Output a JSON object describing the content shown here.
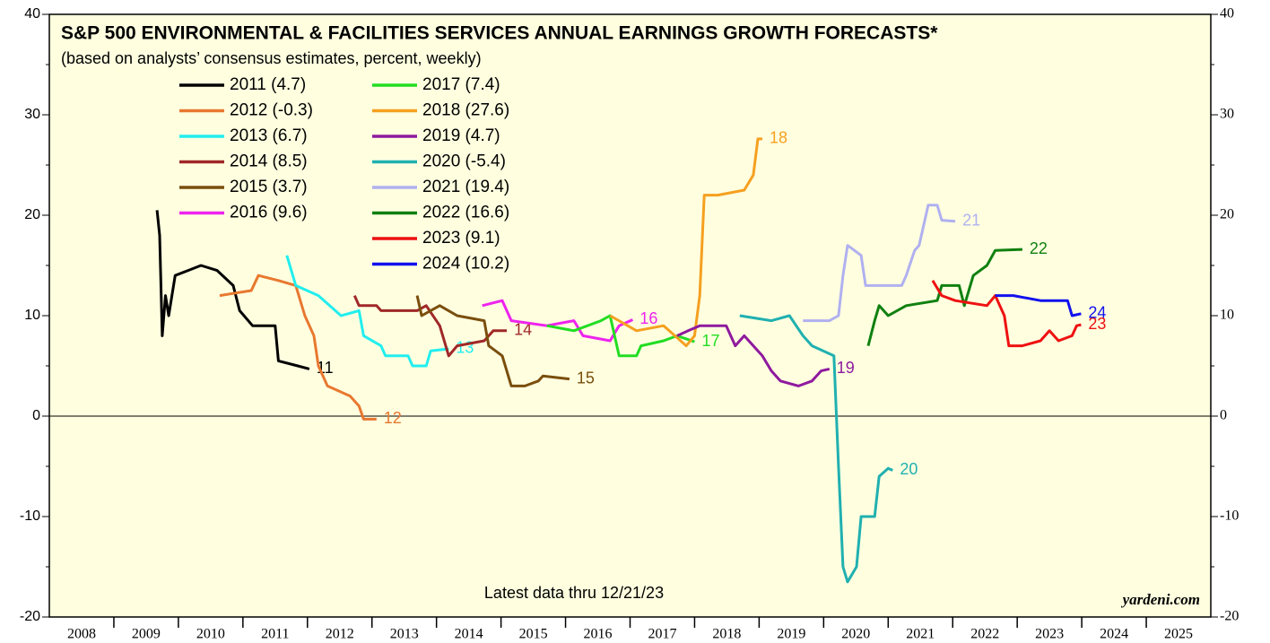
{
  "chart_data": {
    "type": "line",
    "title": "S&P 500 ENVIRONMENTAL & FACILITIES SERVICES ANNUAL EARNINGS GROWTH FORECASTS*",
    "subtitle": "(based on analysts’ consensus estimates, percent, weekly)",
    "note": "Latest data thru 12/21/23",
    "source": "yardeni.com",
    "xlim": [
      2008,
      2026
    ],
    "xticks": [
      2009,
      2010,
      2011,
      2012,
      2013,
      2014,
      2015,
      2016,
      2017,
      2018,
      2019,
      2020,
      2021,
      2022,
      2023,
      2024,
      2025
    ],
    "categories": [
      "2008",
      "2009",
      "2010",
      "2011",
      "2012",
      "2013",
      "2014",
      "2015",
      "2016",
      "2017",
      "2018",
      "2019",
      "2020",
      "2021",
      "2022",
      "2023",
      "2024",
      "2025"
    ],
    "ylim": [
      -20,
      40
    ],
    "yticks": [
      -20,
      -10,
      0,
      10,
      20,
      30,
      40
    ],
    "series": [
      {
        "name": "2011 (4.7)",
        "label": "11",
        "color": "#000000",
        "x": [
          2009.67,
          2009.71,
          2009.75,
          2009.8,
          2009.85,
          2009.95,
          2010.15,
          2010.35,
          2010.6,
          2010.85,
          2010.95,
          2011.15,
          2011.5,
          2011.55,
          2011.85,
          2012.03
        ],
        "values": [
          20.5,
          18,
          8,
          12,
          10,
          14,
          14.5,
          15,
          14.5,
          13,
          10.5,
          9,
          9,
          5.5,
          5,
          4.7
        ]
      },
      {
        "name": "2012 (-0.3)",
        "label": "12",
        "color": "#e8782f",
        "x": [
          2010.64,
          2011.13,
          2011.24,
          2011.55,
          2011.82,
          2011.96,
          2012.1,
          2012.17,
          2012.31,
          2012.66,
          2012.8,
          2012.87,
          2013.07
        ],
        "values": [
          12,
          12.5,
          14,
          13.5,
          13,
          10,
          8,
          5,
          3,
          2,
          1,
          -0.3,
          -0.3
        ]
      },
      {
        "name": "2013 (6.7)",
        "label": "13",
        "color": "#22eeee",
        "x": [
          2011.68,
          2011.82,
          2012.17,
          2012.52,
          2012.8,
          2012.87,
          2013.14,
          2013.21,
          2013.56,
          2013.63,
          2013.84,
          2013.91,
          2014.19
        ],
        "values": [
          16,
          13,
          12,
          10,
          10.5,
          8,
          7,
          6,
          6,
          5,
          5,
          6.5,
          6.7
        ]
      },
      {
        "name": "2014 (8.5)",
        "label": "14",
        "color": "#a02828",
        "x": [
          2012.73,
          2012.8,
          2013.07,
          2013.14,
          2013.7,
          2013.84,
          2014.05,
          2014.19,
          2014.32,
          2014.74,
          2014.88,
          2015.09
        ],
        "values": [
          12,
          11,
          11,
          10.5,
          10.5,
          11,
          9,
          6,
          7,
          7.5,
          8.5,
          8.5
        ]
      },
      {
        "name": "2015 (3.7)",
        "label": "15",
        "color": "#7a4e0c",
        "x": [
          2013.7,
          2013.77,
          2014.05,
          2014.32,
          2014.74,
          2014.81,
          2015.02,
          2015.16,
          2015.37,
          2015.58,
          2015.65,
          2016.06
        ],
        "values": [
          12,
          10,
          11,
          10,
          9.5,
          7,
          6,
          3,
          3,
          3.5,
          4,
          3.7
        ]
      },
      {
        "name": "2016 (9.6)",
        "label": "16",
        "color": "#ee22ee",
        "x": [
          2014.71,
          2015.02,
          2015.16,
          2015.71,
          2016.13,
          2016.27,
          2016.69,
          2016.83,
          2017.04
        ],
        "values": [
          11,
          11.5,
          9.5,
          9,
          9.5,
          8,
          7.5,
          9,
          9.6
        ]
      },
      {
        "name": "2017 (7.4)",
        "label": "17",
        "color": "#22dd22",
        "x": [
          2015.71,
          2016.13,
          2016.55,
          2016.69,
          2016.83,
          2017.1,
          2017.17,
          2017.52,
          2017.73,
          2018.0
        ],
        "values": [
          9,
          8.5,
          9.5,
          10,
          6,
          6,
          7,
          7.5,
          8,
          7.4
        ]
      },
      {
        "name": "2018 (27.6)",
        "label": "18",
        "color": "#f5a020",
        "x": [
          2016.69,
          2017.1,
          2017.52,
          2017.87,
          2018.0,
          2018.08,
          2018.15,
          2018.36,
          2018.77,
          2018.91,
          2018.98,
          2019.05
        ],
        "values": [
          10,
          8.5,
          9,
          7,
          8,
          12,
          22,
          22,
          22.5,
          24,
          27.6,
          27.6
        ]
      },
      {
        "name": "2019 (4.7)",
        "label": "19",
        "color": "#8e1a9e",
        "x": [
          2017.73,
          2017.9,
          2018.08,
          2018.49,
          2018.63,
          2018.77,
          2019.05,
          2019.19,
          2019.33,
          2019.61,
          2019.82,
          2019.96,
          2020.09
        ],
        "values": [
          8,
          8.5,
          9,
          9,
          7,
          8,
          6,
          4.5,
          3.5,
          3,
          3.5,
          4.5,
          4.7
        ]
      },
      {
        "name": "2020 (-5.4)",
        "label": "20",
        "color": "#20b0b0",
        "x": [
          2018.7,
          2019.19,
          2019.47,
          2019.68,
          2019.82,
          2020.16,
          2020.23,
          2020.3,
          2020.37,
          2020.51,
          2020.58,
          2020.79,
          2020.86,
          2021.0,
          2021.07
        ],
        "values": [
          10,
          9.5,
          10,
          8,
          7,
          6,
          -5,
          -15,
          -16.5,
          -15,
          -10,
          -10,
          -6,
          -5.2,
          -5.4
        ]
      },
      {
        "name": "2021 (19.4)",
        "label": "21",
        "color": "#b0b0f0",
        "x": [
          2019.68,
          2020.09,
          2020.23,
          2020.3,
          2020.37,
          2020.58,
          2020.65,
          2021.21,
          2021.28,
          2021.41,
          2021.48,
          2021.62,
          2021.76,
          2021.83,
          2022.04
        ],
        "values": [
          9.5,
          9.5,
          10,
          14,
          17,
          16,
          13,
          13,
          14,
          16.5,
          17,
          21,
          21,
          19.5,
          19.4
        ]
      },
      {
        "name": "2022 (16.6)",
        "label": "22",
        "color": "#108010",
        "x": [
          2020.69,
          2020.79,
          2020.86,
          2021.0,
          2021.28,
          2021.76,
          2021.83,
          2022.1,
          2022.18,
          2022.32,
          2022.53,
          2022.66,
          2023.08
        ],
        "values": [
          7,
          9.5,
          11,
          10,
          11,
          11.5,
          13,
          13,
          11,
          14,
          15,
          16.5,
          16.6
        ]
      },
      {
        "name": "2023 (9.1)",
        "label": "23",
        "color": "#ee1111",
        "x": [
          2021.69,
          2021.83,
          2022.04,
          2022.53,
          2022.66,
          2022.8,
          2022.87,
          2023.08,
          2023.36,
          2023.5,
          2023.64,
          2023.85,
          2023.92,
          2023.99
        ],
        "values": [
          13.5,
          12,
          11.5,
          11,
          12,
          10,
          7,
          7,
          7.5,
          8.5,
          7.5,
          8,
          9,
          9.1
        ]
      },
      {
        "name": "2024 (10.2)",
        "label": "24",
        "color": "#1111ee",
        "x": [
          2022.66,
          2022.94,
          2023.36,
          2023.78,
          2023.85,
          2023.99
        ],
        "values": [
          12,
          12,
          11.5,
          11.5,
          10,
          10.2
        ]
      }
    ]
  }
}
